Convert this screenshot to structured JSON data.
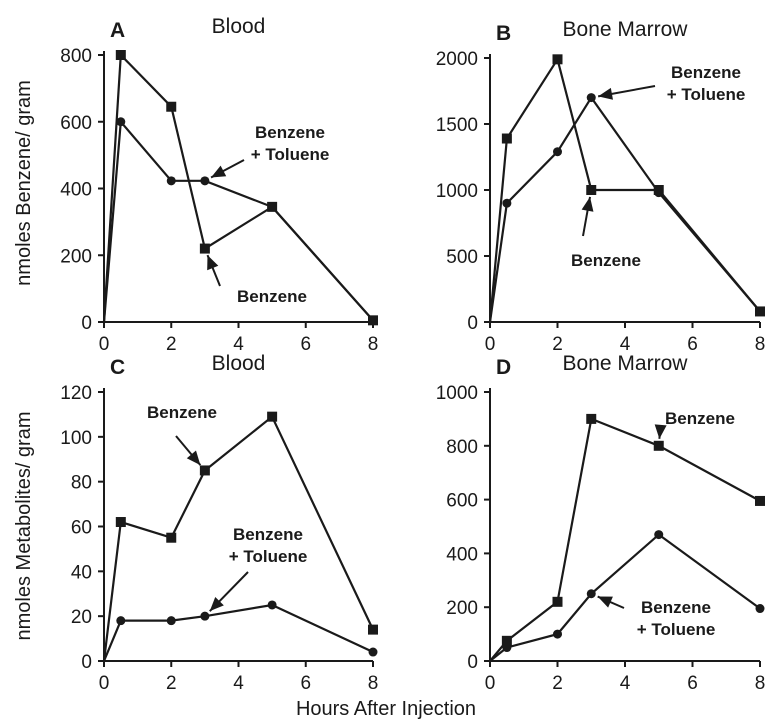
{
  "figure": {
    "ylabel_top": "nmoles Benzene/ gram",
    "ylabel_bottom": "nmoles Metabolites/ gram",
    "xlabel": "Hours After Injection"
  },
  "chart_data": [
    {
      "type": "line",
      "panel": "A",
      "title": "Blood",
      "xlim": [
        0,
        8
      ],
      "ylim": [
        0,
        800
      ],
      "xticks": [
        0,
        2,
        4,
        6,
        8
      ],
      "yticks": [
        0,
        200,
        400,
        600,
        800
      ],
      "series": [
        {
          "name": "Benzene",
          "marker": "square",
          "x": [
            0,
            0.5,
            2,
            3,
            5,
            8
          ],
          "y": [
            0,
            800,
            645,
            220,
            345,
            5
          ]
        },
        {
          "name": "Benzene + Toluene",
          "marker": "circle",
          "x": [
            0,
            0.5,
            2,
            3,
            5,
            8
          ],
          "y": [
            0,
            600,
            423,
            423,
            345,
            5
          ]
        }
      ],
      "annotations": [
        {
          "lines": [
            "Benzene",
            "+ Toluene"
          ],
          "series": "Benzene + Toluene"
        },
        {
          "lines": [
            "Benzene"
          ],
          "series": "Benzene"
        }
      ]
    },
    {
      "type": "line",
      "panel": "B",
      "title": "Bone Marrow",
      "xlim": [
        0,
        8
      ],
      "ylim": [
        0,
        2000
      ],
      "xticks": [
        0,
        2,
        4,
        6,
        8
      ],
      "yticks": [
        0,
        500,
        1000,
        1500,
        2000
      ],
      "series": [
        {
          "name": "Benzene",
          "marker": "square",
          "x": [
            0,
            0.5,
            2,
            3,
            5,
            8
          ],
          "y": [
            0,
            1390,
            1990,
            1000,
            1000,
            80
          ]
        },
        {
          "name": "Benzene + Toluene",
          "marker": "circle",
          "x": [
            0,
            0.5,
            2,
            3,
            5,
            8
          ],
          "y": [
            0,
            900,
            1290,
            1700,
            980,
            80
          ]
        }
      ],
      "annotations": [
        {
          "lines": [
            "Benzene",
            "+ Toluene"
          ],
          "series": "Benzene + Toluene"
        },
        {
          "lines": [
            "Benzene"
          ],
          "series": "Benzene"
        }
      ]
    },
    {
      "type": "line",
      "panel": "C",
      "title": "Blood",
      "xlim": [
        0,
        8
      ],
      "ylim": [
        0,
        120
      ],
      "xticks": [
        0,
        2,
        4,
        6,
        8
      ],
      "yticks": [
        0,
        20,
        40,
        60,
        80,
        100,
        120
      ],
      "series": [
        {
          "name": "Benzene",
          "marker": "square",
          "x": [
            0,
            0.5,
            2,
            3,
            5,
            8
          ],
          "y": [
            0,
            62,
            55,
            85,
            109,
            14
          ]
        },
        {
          "name": "Benzene + Toluene",
          "marker": "circle",
          "x": [
            0,
            0.5,
            2,
            3,
            5,
            8
          ],
          "y": [
            0,
            18,
            18,
            20,
            25,
            4
          ]
        }
      ],
      "annotations": [
        {
          "lines": [
            "Benzene"
          ],
          "series": "Benzene"
        },
        {
          "lines": [
            "Benzene",
            "+ Toluene"
          ],
          "series": "Benzene + Toluene"
        }
      ]
    },
    {
      "type": "line",
      "panel": "D",
      "title": "Bone Marrow",
      "xlim": [
        0,
        8
      ],
      "ylim": [
        0,
        1000
      ],
      "xticks": [
        0,
        2,
        4,
        6,
        8
      ],
      "yticks": [
        0,
        200,
        400,
        600,
        800,
        1000
      ],
      "series": [
        {
          "name": "Benzene",
          "marker": "square",
          "x": [
            0,
            0.5,
            2,
            3,
            5,
            8
          ],
          "y": [
            0,
            75,
            220,
            900,
            800,
            595
          ]
        },
        {
          "name": "Benzene + Toluene",
          "marker": "circle",
          "x": [
            0,
            0.5,
            2,
            3,
            5,
            8
          ],
          "y": [
            0,
            50,
            100,
            250,
            470,
            195
          ]
        }
      ],
      "annotations": [
        {
          "lines": [
            "Benzene"
          ],
          "series": "Benzene"
        },
        {
          "lines": [
            "Benzene",
            "+ Toluene"
          ],
          "series": "Benzene + Toluene"
        }
      ]
    }
  ]
}
